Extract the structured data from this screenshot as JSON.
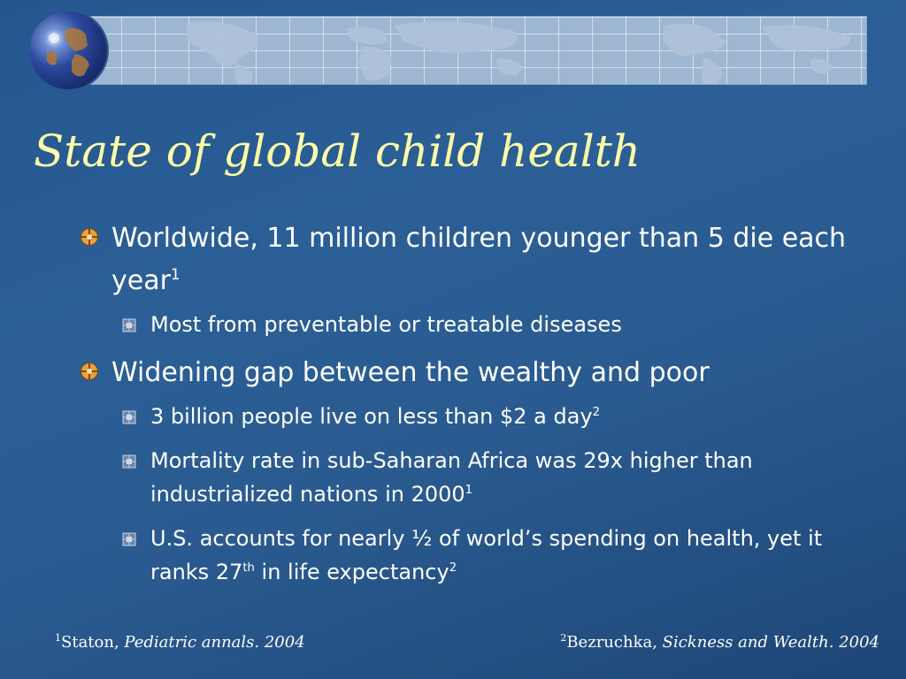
{
  "slide": {
    "title": "State of global child health",
    "bullets": [
      {
        "text": "Worldwide, 11 million children younger than 5 die each year",
        "ref": "1",
        "subbullets": [
          {
            "text": "Most from preventable or treatable diseases"
          }
        ]
      },
      {
        "text": "Widening gap between the wealthy and poor",
        "subbullets": [
          {
            "text": "3 billion people live on less than $2 a day",
            "ref": "2"
          },
          {
            "text": "Mortality rate in sub-Saharan Africa was 29x higher than industrialized nations in 2000",
            "ref": "1"
          },
          {
            "text_a": "U.S. accounts for nearly ½ of world’s spending on health, yet it ranks 27",
            "sup_a": "th",
            "text_b": " in life expectancy",
            "ref": "2"
          }
        ]
      }
    ],
    "footnotes": {
      "left": {
        "ref": "1",
        "author": "Staton, ",
        "source": "Pediatric annals. 2004"
      },
      "right": {
        "ref": "2",
        "author": "Bezruchka, ",
        "source": "Sickness and Wealth. 2004"
      }
    }
  },
  "colors": {
    "title": "#ffffa8",
    "text": "#ffffff",
    "bullet_primary": "#e8a23a",
    "bullet_secondary": "#b7c7dc"
  },
  "icons": {
    "header_globe": "globe-icon",
    "world_map": "world-map-icon",
    "primary_bullet": "compass-bullet-icon",
    "secondary_bullet": "square-bullet-icon"
  }
}
